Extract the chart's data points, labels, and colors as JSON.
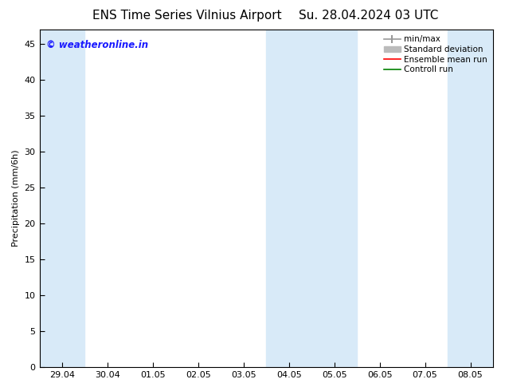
{
  "title": "ENS Time Series Vilnius Airport",
  "title_right": "Su. 28.04.2024 03 UTC",
  "ylabel": "Precipitation (mm/6h)",
  "xlabel": "",
  "ylim": [
    0,
    47
  ],
  "yticks": [
    0,
    5,
    10,
    15,
    20,
    25,
    30,
    35,
    40,
    45
  ],
  "xtick_labels": [
    "29.04",
    "30.04",
    "01.05",
    "02.05",
    "03.05",
    "04.05",
    "05.05",
    "06.05",
    "07.05",
    "08.05"
  ],
  "background_color": "#ffffff",
  "plot_bg_color": "#ffffff",
  "shaded_color": "#d8eaf8",
  "shaded_regions_idx": [
    0,
    5,
    6,
    9
  ],
  "legend_items": [
    {
      "label": "min/max",
      "color": "#999999",
      "lw": 1.2,
      "style": "errorbar"
    },
    {
      "label": "Standard deviation",
      "color": "#bbbbbb",
      "lw": 5,
      "style": "band"
    },
    {
      "label": "Ensemble mean run",
      "color": "#ff0000",
      "lw": 1.2,
      "style": "line"
    },
    {
      "label": "Controll run",
      "color": "#008000",
      "lw": 1.2,
      "style": "line"
    }
  ],
  "watermark_text": "© weatheronline.in",
  "watermark_color": "#1a1aff",
  "title_fontsize": 11,
  "axis_fontsize": 8,
  "tick_fontsize": 8,
  "legend_fontsize": 7.5
}
